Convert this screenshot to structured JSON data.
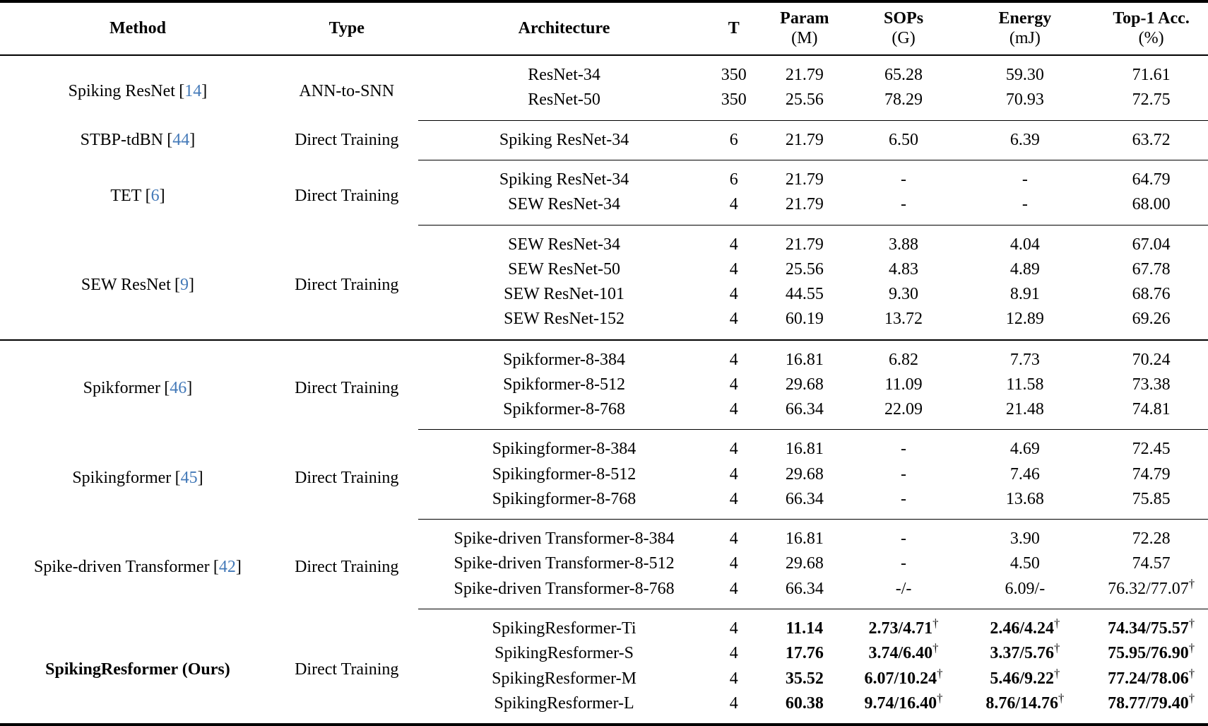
{
  "meta": {
    "colors": {
      "citation": "#4379b8",
      "text": "#000000",
      "background": "#ffffff",
      "rule": "#000000"
    },
    "cite_open": "[",
    "cite_close": "]"
  },
  "table": {
    "columns": [
      {
        "label": "Method",
        "sub": ""
      },
      {
        "label": "Type",
        "sub": ""
      },
      {
        "label": "Architecture",
        "sub": ""
      },
      {
        "label": "T",
        "sub": ""
      },
      {
        "label": "Param",
        "sub": "(M)"
      },
      {
        "label": "SOPs",
        "sub": "(G)"
      },
      {
        "label": "Energy",
        "sub": "(mJ)"
      },
      {
        "label": "Top-1 Acc.",
        "sub": "(%)"
      }
    ],
    "groups": [
      {
        "method": {
          "name": "Spiking ResNet",
          "citation": "14",
          "bold": false
        },
        "type": "ANN-to-SNN",
        "separator": "none",
        "bold_values": false,
        "rows": [
          {
            "architecture": "ResNet-34",
            "t": "350",
            "param": "21.79",
            "sops": "65.28",
            "energy": "59.30",
            "acc": "71.61"
          },
          {
            "architecture": "ResNet-50",
            "t": "350",
            "param": "25.56",
            "sops": "78.29",
            "energy": "70.93",
            "acc": "72.75"
          }
        ]
      },
      {
        "method": {
          "name": "STBP-tdBN",
          "citation": "44",
          "bold": false
        },
        "type": "Direct Training",
        "separator": "partial",
        "bold_values": false,
        "rows": [
          {
            "architecture": "Spiking ResNet-34",
            "t": "6",
            "param": "21.79",
            "sops": "6.50",
            "energy": "6.39",
            "acc": "63.72"
          }
        ]
      },
      {
        "method": {
          "name": "TET",
          "citation": "6",
          "bold": false
        },
        "type": "Direct Training",
        "separator": "partial",
        "bold_values": false,
        "rows": [
          {
            "architecture": "Spiking ResNet-34",
            "t": "6",
            "param": "21.79",
            "sops": "-",
            "energy": "-",
            "acc": "64.79"
          },
          {
            "architecture": "SEW ResNet-34",
            "t": "4",
            "param": "21.79",
            "sops": "-",
            "energy": "-",
            "acc": "68.00"
          }
        ]
      },
      {
        "method": {
          "name": "SEW ResNet",
          "citation": "9",
          "bold": false
        },
        "type": "Direct Training",
        "separator": "partial",
        "bold_values": false,
        "rows": [
          {
            "architecture": "SEW ResNet-34",
            "t": "4",
            "param": "21.79",
            "sops": "3.88",
            "energy": "4.04",
            "acc": "67.04"
          },
          {
            "architecture": "SEW ResNet-50",
            "t": "4",
            "param": "25.56",
            "sops": "4.83",
            "energy": "4.89",
            "acc": "67.78"
          },
          {
            "architecture": "SEW ResNet-101",
            "t": "4",
            "param": "44.55",
            "sops": "9.30",
            "energy": "8.91",
            "acc": "68.76"
          },
          {
            "architecture": "SEW ResNet-152",
            "t": "4",
            "param": "60.19",
            "sops": "13.72",
            "energy": "12.89",
            "acc": "69.26"
          }
        ]
      },
      {
        "method": {
          "name": "Spikformer",
          "citation": "46",
          "bold": false
        },
        "type": "Direct Training",
        "separator": "full",
        "bold_values": false,
        "rows": [
          {
            "architecture": "Spikformer-8-384",
            "t": "4",
            "param": "16.81",
            "sops": "6.82",
            "energy": "7.73",
            "acc": "70.24"
          },
          {
            "architecture": "Spikformer-8-512",
            "t": "4",
            "param": "29.68",
            "sops": "11.09",
            "energy": "11.58",
            "acc": "73.38"
          },
          {
            "architecture": "Spikformer-8-768",
            "t": "4",
            "param": "66.34",
            "sops": "22.09",
            "energy": "21.48",
            "acc": "74.81"
          }
        ]
      },
      {
        "method": {
          "name": "Spikingformer",
          "citation": "45",
          "bold": false
        },
        "type": "Direct Training",
        "separator": "partial",
        "bold_values": false,
        "rows": [
          {
            "architecture": "Spikingformer-8-384",
            "t": "4",
            "param": "16.81",
            "sops": "-",
            "energy": "4.69",
            "acc": "72.45"
          },
          {
            "architecture": "Spikingformer-8-512",
            "t": "4",
            "param": "29.68",
            "sops": "-",
            "energy": "7.46",
            "acc": "74.79"
          },
          {
            "architecture": "Spikingformer-8-768",
            "t": "4",
            "param": "66.34",
            "sops": "-",
            "energy": "13.68",
            "acc": "75.85"
          }
        ]
      },
      {
        "method": {
          "name": "Spike-driven Transformer",
          "citation": "42",
          "bold": false
        },
        "type": "Direct Training",
        "separator": "partial",
        "bold_values": false,
        "rows": [
          {
            "architecture": "Spike-driven Transformer-8-384",
            "t": "4",
            "param": "16.81",
            "sops": "-",
            "energy": "3.90",
            "acc": "72.28"
          },
          {
            "architecture": "Spike-driven Transformer-8-512",
            "t": "4",
            "param": "29.68",
            "sops": "-",
            "energy": "4.50",
            "acc": "74.57"
          },
          {
            "architecture": "Spike-driven Transformer-8-768",
            "t": "4",
            "param": "66.34",
            "sops": "-/-",
            "energy": "6.09/-",
            "acc": "76.32/77.07†"
          }
        ]
      },
      {
        "method": {
          "name": "SpikingResformer (Ours)",
          "citation": null,
          "bold": true
        },
        "type": "Direct Training",
        "separator": "partial",
        "bold_values": true,
        "rows": [
          {
            "architecture": "SpikingResformer-Ti",
            "t": "4",
            "param": "11.14",
            "sops": "2.73/4.71†",
            "energy": "2.46/4.24†",
            "acc": "74.34/75.57†"
          },
          {
            "architecture": "SpikingResformer-S",
            "t": "4",
            "param": "17.76",
            "sops": "3.74/6.40†",
            "energy": "3.37/5.76†",
            "acc": "75.95/76.90†"
          },
          {
            "architecture": "SpikingResformer-M",
            "t": "4",
            "param": "35.52",
            "sops": "6.07/10.24†",
            "energy": "5.46/9.22†",
            "acc": "77.24/78.06†"
          },
          {
            "architecture": "SpikingResformer-L",
            "t": "4",
            "param": "60.38",
            "sops": "9.74/16.40†",
            "energy": "8.76/14.76†",
            "acc": "78.77/79.40†"
          }
        ]
      }
    ]
  }
}
